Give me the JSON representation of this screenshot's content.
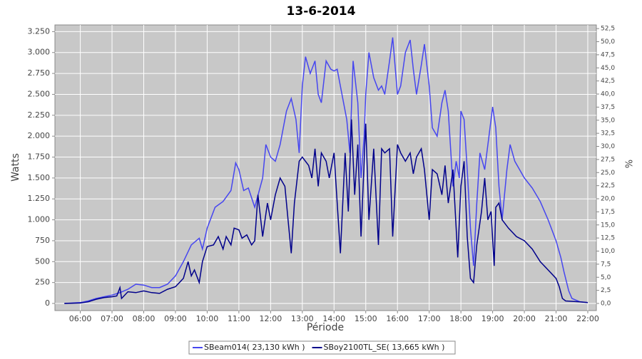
{
  "chart_data": {
    "type": "line",
    "title": "13-6-2014",
    "xlabel": "Période",
    "ylabel": "Watts",
    "y2label": "%",
    "xlim": [
      5.2,
      22.27
    ],
    "ylim": [
      -85,
      3330
    ],
    "y2lim": [
      -1.36,
      53.2
    ],
    "xticks": [
      {
        "value": 6,
        "label": "06:00"
      },
      {
        "value": 7,
        "label": "07:00"
      },
      {
        "value": 8,
        "label": "08:00"
      },
      {
        "value": 9,
        "label": "09:00"
      },
      {
        "value": 10,
        "label": "10:00"
      },
      {
        "value": 11,
        "label": "11:00"
      },
      {
        "value": 12,
        "label": "12:00"
      },
      {
        "value": 13,
        "label": "13:00"
      },
      {
        "value": 14,
        "label": "14:00"
      },
      {
        "value": 15,
        "label": "15:00"
      },
      {
        "value": 16,
        "label": "16:00"
      },
      {
        "value": 17,
        "label": "17:00"
      },
      {
        "value": 18,
        "label": "18:00"
      },
      {
        "value": 19,
        "label": "19:00"
      },
      {
        "value": 20,
        "label": "20:00"
      },
      {
        "value": 21,
        "label": "21:00"
      },
      {
        "value": 22,
        "label": "22:00"
      }
    ],
    "yticks": [
      0,
      250,
      500,
      750,
      {
        "value": 1000,
        "label": "1.000"
      },
      {
        "value": 1250,
        "label": "1.250"
      },
      {
        "value": 1500,
        "label": "1.500"
      },
      {
        "value": 1750,
        "label": "1.750"
      },
      {
        "value": 2000,
        "label": "2.000"
      },
      {
        "value": 2250,
        "label": "2.250"
      },
      {
        "value": 2500,
        "label": "2.500"
      },
      {
        "value": 2750,
        "label": "2.750"
      },
      {
        "value": 3000,
        "label": "3.000"
      },
      {
        "value": 3250,
        "label": "3.250"
      }
    ],
    "y2ticks": [
      {
        "value": 0,
        "label": "0,0"
      },
      {
        "value": 2.5,
        "label": "2,5"
      },
      {
        "value": 5,
        "label": "5,0"
      },
      {
        "value": 7.5,
        "label": "7,5"
      },
      {
        "value": 10,
        "label": "10,0"
      },
      {
        "value": 12.5,
        "label": "12,5"
      },
      {
        "value": 15,
        "label": "15,0"
      },
      {
        "value": 17.5,
        "label": "17,5"
      },
      {
        "value": 20,
        "label": "20,0"
      },
      {
        "value": 22.5,
        "label": "22,5"
      },
      {
        "value": 25,
        "label": "25,0"
      },
      {
        "value": 27.5,
        "label": "27,5"
      },
      {
        "value": 30,
        "label": "30,0"
      },
      {
        "value": 32.5,
        "label": "32,5"
      },
      {
        "value": 35,
        "label": "35,0"
      },
      {
        "value": 37.5,
        "label": "37,5"
      },
      {
        "value": 40,
        "label": "40,0"
      },
      {
        "value": 42.5,
        "label": "42,5"
      },
      {
        "value": 45,
        "label": "45,0"
      },
      {
        "value": 47.5,
        "label": "47,5"
      },
      {
        "value": 50,
        "label": "50,0"
      },
      {
        "value": 52.5,
        "label": "52,5"
      }
    ],
    "grid": true,
    "series": [
      {
        "name": "SBeam014( 23,130 kWh )",
        "color": "#4646f0",
        "x": [
          5.5,
          6.0,
          6.25,
          6.5,
          6.75,
          7.0,
          7.25,
          7.5,
          7.75,
          8.0,
          8.25,
          8.5,
          8.75,
          9.0,
          9.25,
          9.5,
          9.75,
          9.85,
          10.0,
          10.25,
          10.5,
          10.75,
          10.9,
          11.0,
          11.15,
          11.3,
          11.5,
          11.75,
          11.85,
          12.0,
          12.15,
          12.3,
          12.5,
          12.65,
          12.8,
          12.9,
          13.0,
          13.1,
          13.25,
          13.4,
          13.5,
          13.6,
          13.75,
          13.9,
          14.0,
          14.1,
          14.25,
          14.4,
          14.5,
          14.6,
          14.75,
          14.85,
          14.95,
          15.0,
          15.1,
          15.25,
          15.4,
          15.5,
          15.6,
          15.75,
          15.85,
          16.0,
          16.1,
          16.25,
          16.4,
          16.5,
          16.6,
          16.75,
          16.85,
          17.0,
          17.1,
          17.25,
          17.4,
          17.5,
          17.6,
          17.75,
          17.85,
          17.95,
          18.0,
          18.1,
          18.2,
          18.3,
          18.4,
          18.5,
          18.6,
          18.75,
          18.9,
          19.0,
          19.1,
          19.2,
          19.3,
          19.45,
          19.55,
          19.7,
          19.85,
          20.0,
          20.25,
          20.5,
          20.75,
          21.0,
          21.15,
          21.25,
          21.4,
          21.5,
          21.75,
          22.0
        ],
        "values": [
          0,
          10,
          30,
          60,
          80,
          100,
          130,
          170,
          230,
          220,
          190,
          190,
          230,
          330,
          500,
          700,
          780,
          650,
          900,
          1150,
          1220,
          1350,
          1680,
          1600,
          1350,
          1380,
          1150,
          1500,
          1900,
          1750,
          1700,
          1900,
          2300,
          2450,
          2200,
          1800,
          2600,
          2950,
          2750,
          2900,
          2500,
          2400,
          2900,
          2800,
          2780,
          2800,
          2500,
          2200,
          1800,
          2900,
          2400,
          1500,
          2000,
          2500,
          3000,
          2700,
          2550,
          2600,
          2500,
          2900,
          3180,
          2500,
          2600,
          3000,
          3150,
          2800,
          2500,
          2850,
          3100,
          2600,
          2100,
          2000,
          2400,
          2550,
          2300,
          1400,
          1700,
          1500,
          2300,
          2200,
          1600,
          900,
          450,
          1200,
          1800,
          1600,
          2050,
          2350,
          2100,
          1400,
          1000,
          1600,
          1900,
          1700,
          1600,
          1500,
          1380,
          1220,
          1000,
          750,
          550,
          380,
          150,
          60,
          20,
          10
        ]
      },
      {
        "name": "SBoy2100TL_SE( 13,665 kWh )",
        "color": "#00008b",
        "x": [
          5.5,
          6.0,
          6.25,
          6.5,
          6.75,
          7.0,
          7.15,
          7.25,
          7.3,
          7.5,
          7.75,
          8.0,
          8.25,
          8.5,
          8.75,
          9.0,
          9.25,
          9.4,
          9.5,
          9.6,
          9.75,
          9.85,
          10.0,
          10.2,
          10.35,
          10.5,
          10.6,
          10.75,
          10.85,
          11.0,
          11.1,
          11.25,
          11.4,
          11.5,
          11.6,
          11.75,
          11.9,
          12.0,
          12.15,
          12.3,
          12.45,
          12.55,
          12.65,
          12.75,
          12.9,
          13.0,
          13.2,
          13.3,
          13.4,
          13.5,
          13.6,
          13.75,
          13.85,
          14.0,
          14.1,
          14.2,
          14.35,
          14.45,
          14.55,
          14.65,
          14.75,
          14.85,
          14.95,
          15.0,
          15.1,
          15.25,
          15.4,
          15.5,
          15.6,
          15.75,
          15.85,
          16.0,
          16.1,
          16.25,
          16.4,
          16.5,
          16.6,
          16.75,
          16.85,
          17.0,
          17.1,
          17.25,
          17.4,
          17.5,
          17.6,
          17.75,
          17.9,
          18.0,
          18.1,
          18.2,
          18.3,
          18.4,
          18.5,
          18.65,
          18.75,
          18.85,
          18.95,
          19.05,
          19.1,
          19.2,
          19.3,
          19.5,
          19.75,
          20.0,
          20.25,
          20.5,
          20.75,
          21.0,
          21.1,
          21.2,
          21.3,
          21.75,
          22.0
        ],
        "values": [
          0,
          5,
          20,
          50,
          70,
          80,
          90,
          190,
          60,
          140,
          130,
          150,
          130,
          120,
          170,
          200,
          300,
          500,
          330,
          400,
          250,
          500,
          680,
          700,
          800,
          650,
          800,
          700,
          900,
          880,
          780,
          820,
          700,
          750,
          1300,
          800,
          1200,
          1000,
          1300,
          1500,
          1400,
          1000,
          600,
          1200,
          1700,
          1750,
          1650,
          1500,
          1850,
          1400,
          1800,
          1700,
          1500,
          1800,
          1200,
          600,
          1800,
          1100,
          2200,
          1300,
          1900,
          800,
          1700,
          2150,
          1000,
          1850,
          700,
          1850,
          1800,
          1850,
          800,
          1900,
          1800,
          1700,
          1800,
          1550,
          1750,
          1850,
          1600,
          1000,
          1600,
          1550,
          1300,
          1650,
          1200,
          1600,
          550,
          1400,
          1700,
          800,
          300,
          250,
          700,
          1100,
          1500,
          1000,
          1100,
          450,
          1150,
          1200,
          1000,
          900,
          800,
          750,
          650,
          500,
          400,
          300,
          200,
          60,
          30,
          20,
          10
        ]
      }
    ]
  }
}
